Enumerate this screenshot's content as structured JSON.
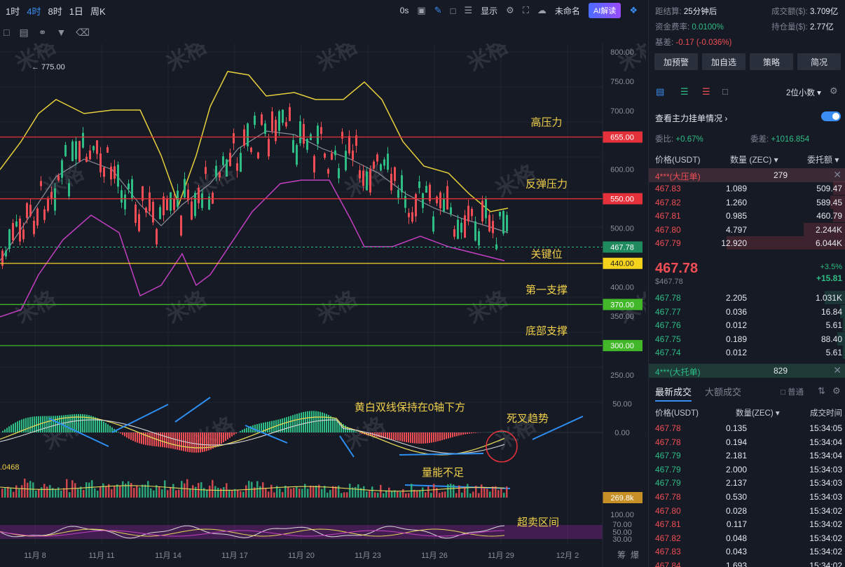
{
  "topbar": {
    "timeframes": [
      "1时",
      "4时",
      "8时",
      "1日",
      "周K"
    ],
    "active": 1,
    "seconds": "0s",
    "display_label": "显示",
    "layout_label": "未命名",
    "ai_label": "AI解读"
  },
  "chart": {
    "watermark": "米格",
    "high_price_label": "← 775.00",
    "y_ticks": [
      "800.00",
      "750.00",
      "700.00",
      "600.00",
      "550.00",
      "500.00",
      "400.00",
      "350.00",
      "250.00"
    ],
    "levels": [
      {
        "label": "高压力",
        "value": "655.00",
        "price": 655,
        "color": "#e5323a",
        "text_color": "#f0d04a"
      },
      {
        "label": "反弹压力",
        "value": "550.00",
        "price": 550,
        "color": "#e5323a",
        "text_color": "#f0d04a"
      },
      {
        "label": "关键位",
        "value": "440.00",
        "price": 440,
        "color": "#f5d21c",
        "text_color": "#f0d04a"
      },
      {
        "label": "第一支撑",
        "value": "370.00",
        "price": 370,
        "color": "#42b72a",
        "text_color": "#f0d04a"
      },
      {
        "label": "底部支撑",
        "value": "300.00",
        "price": 300,
        "color": "#42b72a",
        "text_color": "#f0d04a"
      }
    ],
    "current_price_tag": "467.78",
    "macd_ticks": [
      "50.00",
      "0.00"
    ],
    "macd_note": "黄白双线保持在0轴下方",
    "death_cross_note": "死叉趋势",
    "volume_note": "量能不足",
    "volume_left_value": ".0468",
    "volume_tag": "269.8k",
    "rsi_ticks": [
      "100.00",
      "70.00",
      "50.00",
      "30.00"
    ],
    "oversold_note": "超卖区间",
    "x_labels": [
      "11月 8",
      "11月 11",
      "11月 14",
      "11月 17",
      "11月 20",
      "11月 23",
      "11月 26",
      "11月 29",
      "12月 2"
    ],
    "corner_labels": [
      "筹",
      "爆"
    ]
  },
  "panel": {
    "settle_label": "距结算:",
    "settle_value": "25分钟后",
    "volume_label": "成交额($):",
    "volume_value": "3.709亿",
    "funding_label": "资金费率:",
    "funding_value": "0.0100%",
    "oi_label": "持仓量($):",
    "oi_value": "2.77亿",
    "basis_label": "基差:",
    "basis_value": "-0.17 (-0.036%)",
    "buttons": [
      "加预警",
      "加自选",
      "策略",
      "简况"
    ],
    "decimals": "2位小数",
    "big_orders_link": "查看主力挂单情况",
    "ratio_label": "委比:",
    "ratio_value": "+0.67%",
    "diff_label": "委差:",
    "diff_value": "+1016.854",
    "col_price": "价格(USDT)",
    "col_qty": "数量 (ZEC)",
    "col_total": "委托额",
    "big_ask_label": "4***(大压单)",
    "big_ask_value": "279",
    "asks": [
      {
        "price": "467.83",
        "qty": "1.089",
        "total": "509.47"
      },
      {
        "price": "467.82",
        "qty": "1.260",
        "total": "589.45"
      },
      {
        "price": "467.81",
        "qty": "0.985",
        "total": "460.79"
      },
      {
        "price": "467.80",
        "qty": "4.797",
        "total": "2.244K"
      },
      {
        "price": "467.79",
        "qty": "12.920",
        "total": "6.044K"
      }
    ],
    "last_price": "467.78",
    "last_sub": "$467.78",
    "change_pct": "+3.5%",
    "change_abs": "+15.81",
    "bids": [
      {
        "price": "467.78",
        "qty": "2.205",
        "total": "1.031K"
      },
      {
        "price": "467.77",
        "qty": "0.036",
        "total": "16.84"
      },
      {
        "price": "467.76",
        "qty": "0.012",
        "total": "5.61"
      },
      {
        "price": "467.75",
        "qty": "0.189",
        "total": "88.40"
      },
      {
        "price": "467.74",
        "qty": "0.012",
        "total": "5.61"
      }
    ],
    "big_bid_label": "4***(大托单)",
    "big_bid_value": "829",
    "tab_latest": "最新成交",
    "tab_big": "大额成交",
    "normal_label": "普通",
    "trade_col_price": "价格(USDT)",
    "trade_col_qty": "数量(ZEC)",
    "trade_col_time": "成交时间",
    "trades": [
      {
        "price": "467.78",
        "qty": "0.135",
        "time": "15:34:05",
        "side": "sell"
      },
      {
        "price": "467.78",
        "qty": "0.194",
        "time": "15:34:04",
        "side": "sell"
      },
      {
        "price": "467.79",
        "qty": "2.181",
        "time": "15:34:04",
        "side": "buy"
      },
      {
        "price": "467.79",
        "qty": "2.000",
        "time": "15:34:03",
        "side": "buy"
      },
      {
        "price": "467.79",
        "qty": "2.137",
        "time": "15:34:03",
        "side": "buy"
      },
      {
        "price": "467.78",
        "qty": "0.530",
        "time": "15:34:03",
        "side": "sell"
      },
      {
        "price": "467.80",
        "qty": "0.028",
        "time": "15:34:02",
        "side": "sell"
      },
      {
        "price": "467.81",
        "qty": "0.117",
        "time": "15:34:02",
        "side": "sell"
      },
      {
        "price": "467.82",
        "qty": "0.048",
        "time": "15:34:02",
        "side": "sell"
      },
      {
        "price": "467.83",
        "qty": "0.043",
        "time": "15:34:02",
        "side": "sell"
      },
      {
        "price": "467.84",
        "qty": "1.693",
        "time": "15:34:02",
        "side": "sell"
      }
    ]
  }
}
